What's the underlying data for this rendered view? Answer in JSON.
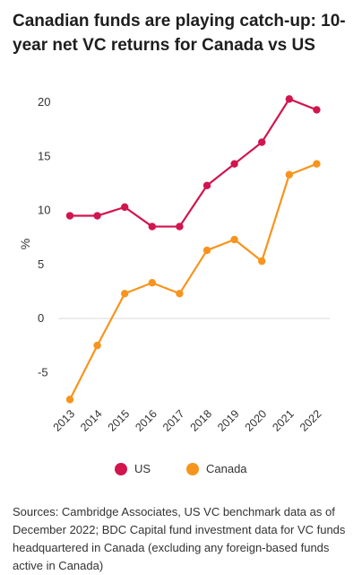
{
  "title": "Canadian funds are playing catch-up: 10-year net VC returns for Canada vs US",
  "note": "Sources: Cambridge Associates, US VC benchmark data as of December 2022; BDC Capital fund investment data for VC funds headquartered in Canada (excluding any foreign-based funds active in Canada)",
  "chart_data": {
    "type": "line",
    "title": "Canadian funds are playing catch-up: 10-year net VC returns for Canada vs US",
    "xlabel": "",
    "ylabel": "%",
    "x": [
      "2013",
      "2014",
      "2015",
      "2016",
      "2017",
      "2018",
      "2019",
      "2020",
      "2021",
      "2022"
    ],
    "ylim": [
      -8,
      22
    ],
    "yticks": [
      -5,
      0,
      5,
      10,
      15,
      20
    ],
    "grid": false,
    "legend_position": "bottom",
    "series": [
      {
        "name": "US",
        "color": "#d1154f",
        "values": [
          9.5,
          9.5,
          10.3,
          8.5,
          8.5,
          12.3,
          14.3,
          16.3,
          20.3,
          19.3
        ]
      },
      {
        "name": "Canada",
        "color": "#f7941d",
        "values": [
          -7.5,
          -2.5,
          2.3,
          3.3,
          2.3,
          6.3,
          7.3,
          5.3,
          13.3,
          14.3
        ]
      }
    ]
  }
}
